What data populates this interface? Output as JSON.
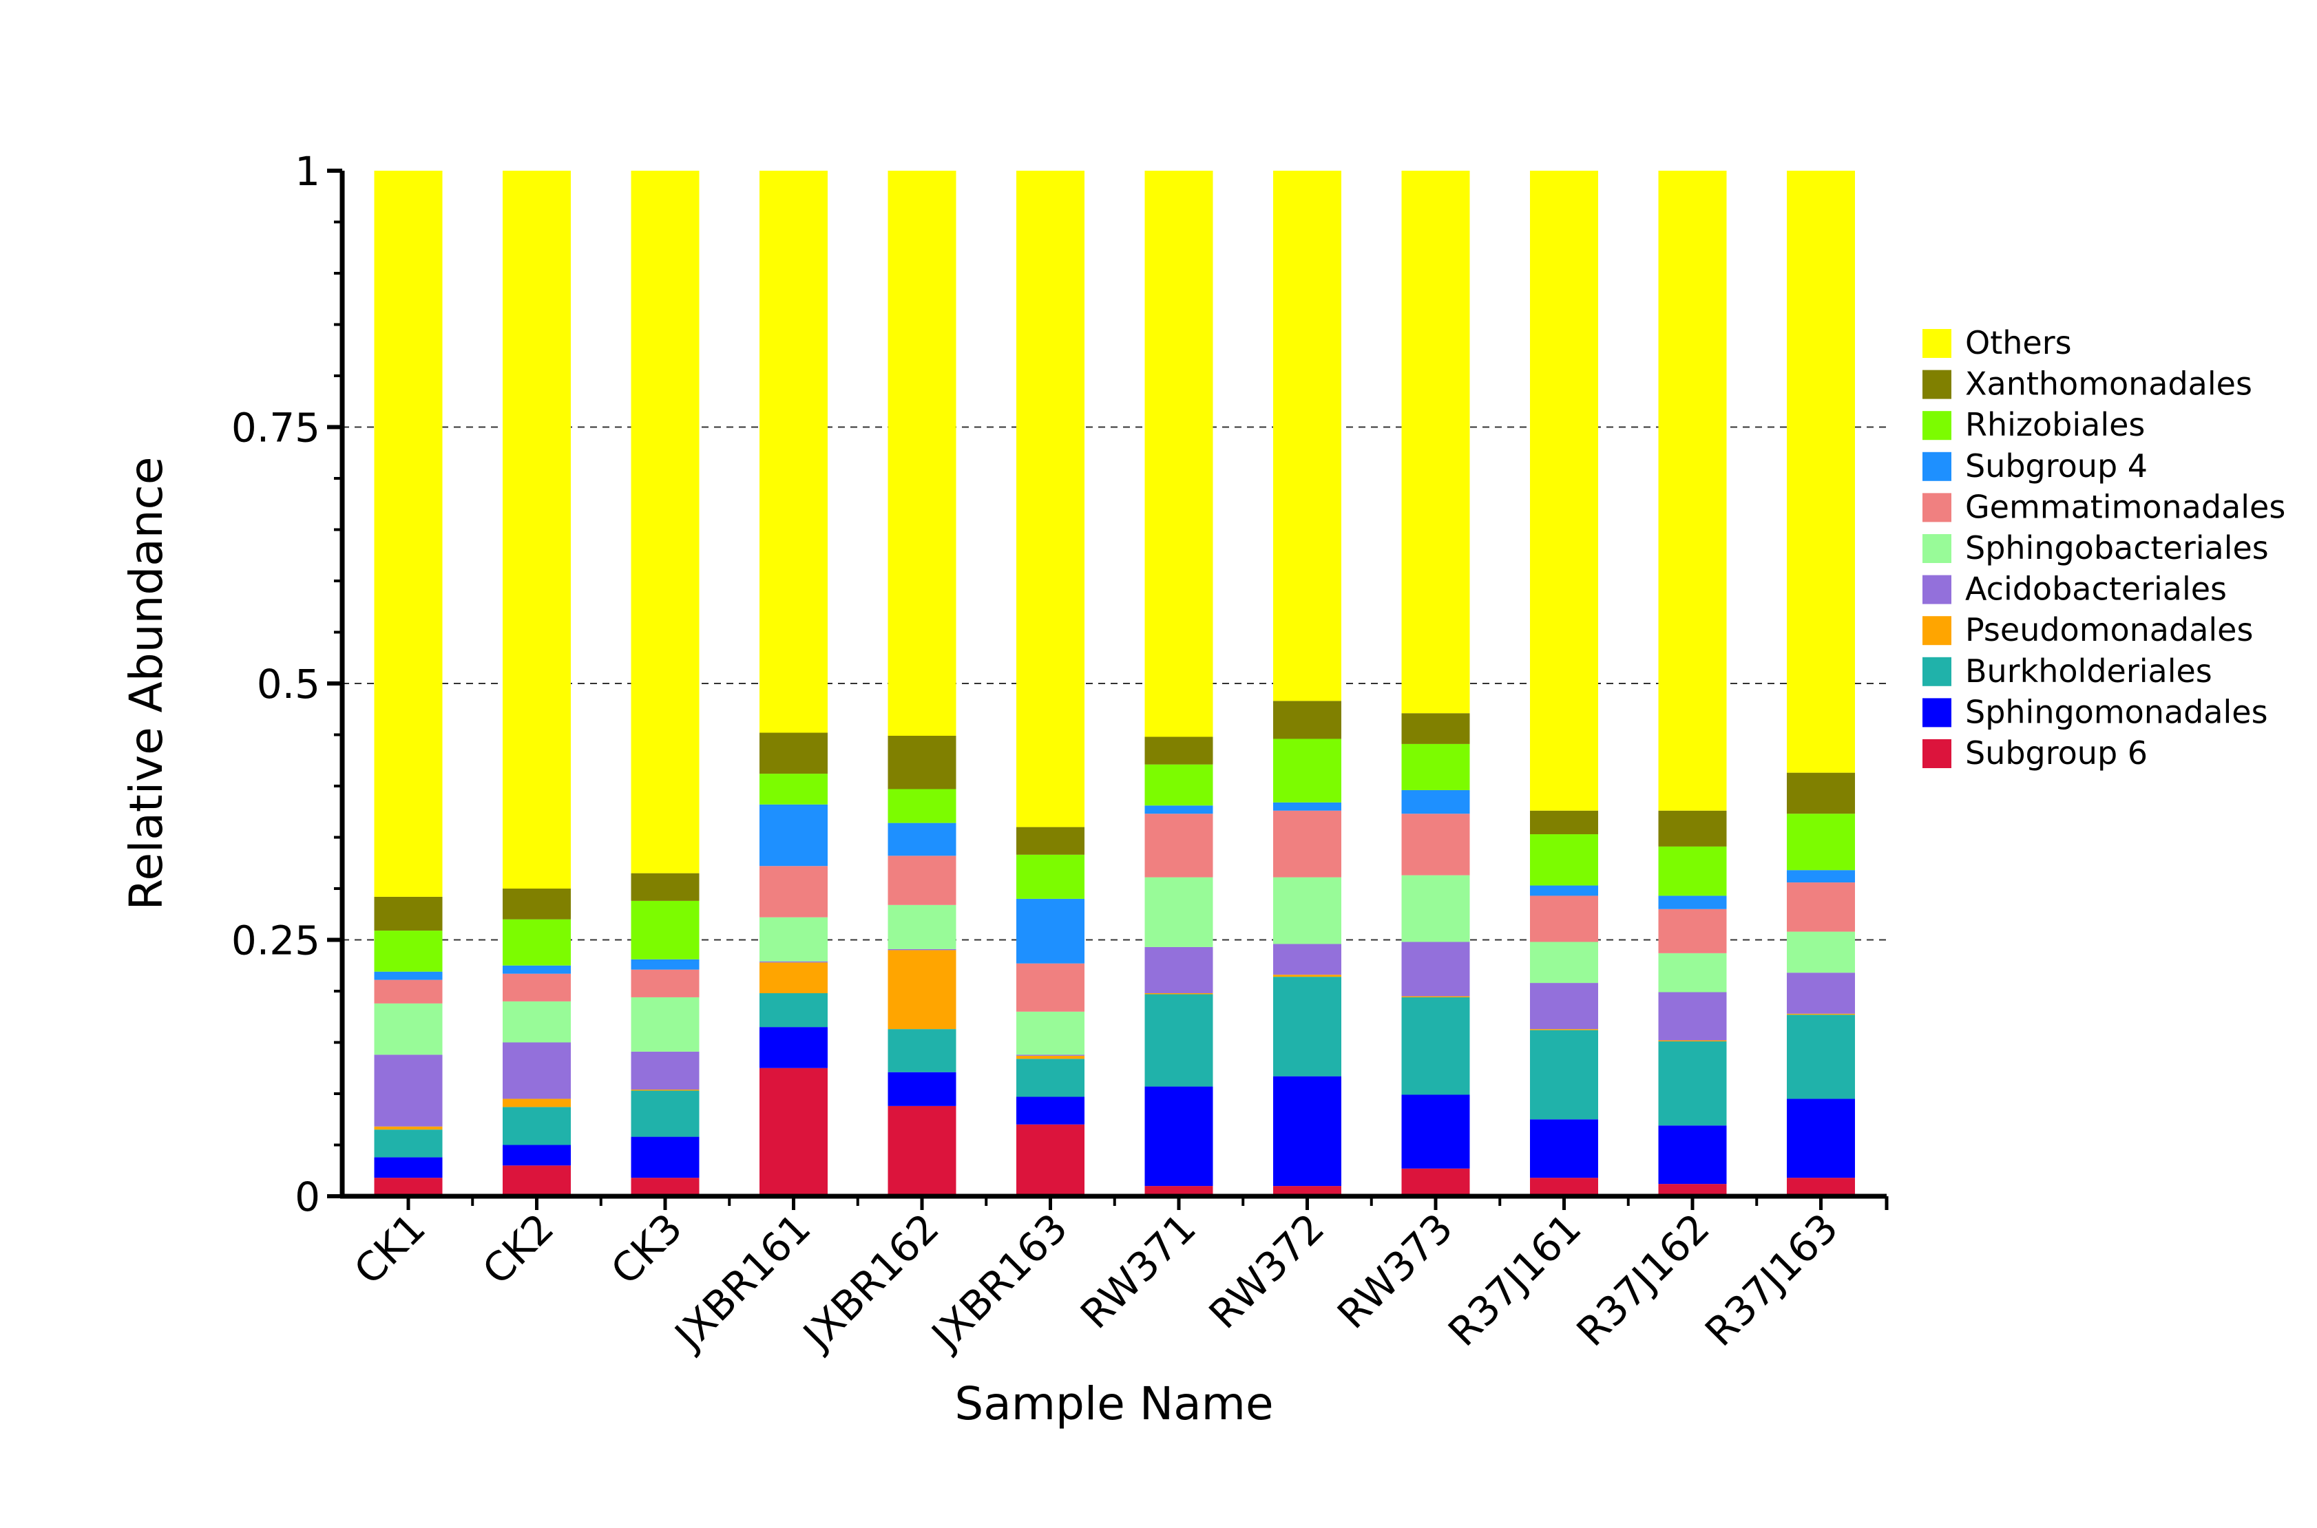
{
  "chart_data": {
    "type": "bar",
    "stacked": true,
    "xlabel": "Sample Name",
    "ylabel": "Relative Abundance",
    "ylim": [
      0,
      1
    ],
    "yticks": [
      "0",
      "0.25",
      "0.5",
      "0.75",
      "1"
    ],
    "grid": "dashed horizontal at 0.25, 0.5, 0.75",
    "legend_position": "right",
    "categories": [
      "CK1",
      "CK2",
      "CK3",
      "JXBR161",
      "JXBR162",
      "JXBR163",
      "RW371",
      "RW372",
      "RW373",
      "R37J161",
      "R37J162",
      "R37J163"
    ],
    "series": [
      {
        "name": "Subgroup 6",
        "color": "#DC143C",
        "values": [
          0.018,
          0.03,
          0.018,
          0.125,
          0.088,
          0.07,
          0.01,
          0.01,
          0.027,
          0.018,
          0.012,
          0.018
        ]
      },
      {
        "name": "Sphingomonadales",
        "color": "#0000FF",
        "values": [
          0.02,
          0.02,
          0.04,
          0.04,
          0.033,
          0.027,
          0.097,
          0.107,
          0.072,
          0.057,
          0.057,
          0.077
        ]
      },
      {
        "name": "Burkholderiales",
        "color": "#20B2AA",
        "values": [
          0.027,
          0.037,
          0.045,
          0.033,
          0.042,
          0.037,
          0.09,
          0.097,
          0.095,
          0.087,
          0.082,
          0.082
        ]
      },
      {
        "name": "Pseudomonadales",
        "color": "#FFA500",
        "values": [
          0.003,
          0.008,
          0.001,
          0.03,
          0.077,
          0.003,
          0.001,
          0.002,
          0.001,
          0.001,
          0.001,
          0.001
        ]
      },
      {
        "name": "Acidobacteriales",
        "color": "#9370DB",
        "values": [
          0.07,
          0.055,
          0.037,
          0.001,
          0.001,
          0.001,
          0.045,
          0.03,
          0.053,
          0.045,
          0.047,
          0.04
        ]
      },
      {
        "name": "Sphingobacteriales",
        "color": "#98FB98",
        "values": [
          0.05,
          0.04,
          0.053,
          0.043,
          0.043,
          0.042,
          0.068,
          0.065,
          0.065,
          0.04,
          0.038,
          0.04
        ]
      },
      {
        "name": "Gemmatimonadales",
        "color": "#F08080",
        "values": [
          0.023,
          0.027,
          0.027,
          0.05,
          0.048,
          0.047,
          0.062,
          0.065,
          0.06,
          0.045,
          0.043,
          0.048
        ]
      },
      {
        "name": "Subgroup 4",
        "color": "#1E90FF",
        "values": [
          0.008,
          0.008,
          0.01,
          0.06,
          0.032,
          0.063,
          0.008,
          0.008,
          0.023,
          0.01,
          0.013,
          0.012
        ]
      },
      {
        "name": "Rhizobiales",
        "color": "#7CFC00",
        "values": [
          0.04,
          0.045,
          0.057,
          0.03,
          0.033,
          0.043,
          0.04,
          0.062,
          0.045,
          0.05,
          0.048,
          0.055
        ]
      },
      {
        "name": "Xanthomonadales",
        "color": "#808000",
        "values": [
          0.033,
          0.03,
          0.027,
          0.04,
          0.052,
          0.027,
          0.027,
          0.037,
          0.03,
          0.023,
          0.035,
          0.04
        ]
      },
      {
        "name": "Others",
        "color": "#FFFF00",
        "values": [
          0.708,
          0.7,
          0.685,
          0.548,
          0.551,
          0.64,
          0.552,
          0.517,
          0.529,
          0.624,
          0.624,
          0.587
        ]
      }
    ]
  }
}
